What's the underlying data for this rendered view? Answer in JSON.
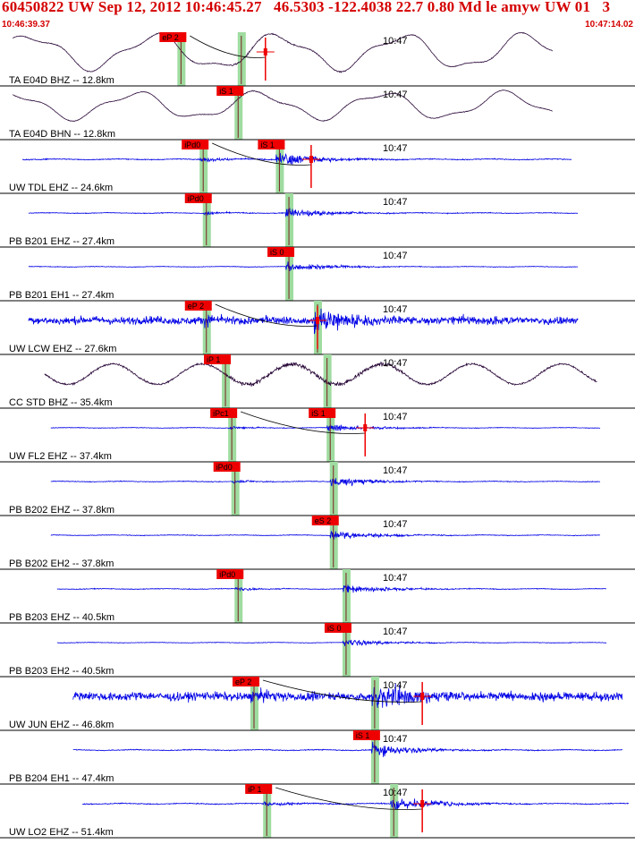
{
  "header": {
    "title": "60450822 UW Sep 12, 2012 10:46:45.27   46.5303 -122.4038 22.7 0.80 Md le amyw UW 01   3",
    "time_start": "10:46:39.37",
    "time_end": "10:47:14.02"
  },
  "colors": {
    "header": "#d40000",
    "trace_blue": "#0000e6",
    "trace_purple": "#2b0a3a",
    "pick_box": "#ee0000",
    "pick_window": "#9fdca0",
    "separator": "#000000"
  },
  "chart_data": {
    "type": "line",
    "time_axis": {
      "start": "10:46:39.37",
      "end": "10:47:14.02",
      "minute_label": "10:47"
    },
    "channels": [
      {
        "label": "TA E04D BHZ -- 12.8km",
        "color": "purple",
        "style": "long-period",
        "start": 0.02,
        "end": 0.87,
        "amp": 0.9,
        "phases": [
          {
            "label": "eP 2",
            "time": 0.285
          },
          {
            "label": "",
            "time": 0.38
          }
        ],
        "marker_time": 0.418,
        "curve": true
      },
      {
        "label": "TA E04D BHN -- 12.8km",
        "color": "purple",
        "style": "long-period",
        "start": 0.02,
        "end": 0.87,
        "amp": 0.7,
        "phases": [
          {
            "label": "iS 1",
            "time": 0.375
          }
        ],
        "marker_time": null,
        "curve": false
      },
      {
        "label": "UW TDL EHZ -- 24.6km",
        "color": "blue",
        "style": "short-period",
        "start": 0.035,
        "end": 0.9,
        "amp": 0.28,
        "phases": [
          {
            "label": "iPd0",
            "time": 0.32
          },
          {
            "label": "iS 1",
            "time": 0.44
          }
        ],
        "marker_time": 0.49,
        "curve": true
      },
      {
        "label": "PB B201 EHZ -- 27.4km",
        "color": "blue",
        "style": "short-period",
        "start": 0.045,
        "end": 0.91,
        "amp": 0.22,
        "phases": [
          {
            "label": "iPd0",
            "time": 0.325
          },
          {
            "label": "",
            "time": 0.455
          }
        ],
        "marker_time": null,
        "curve": false
      },
      {
        "label": "PB B201 EH1 -- 27.4km",
        "color": "blue",
        "style": "short-period",
        "start": 0.045,
        "end": 0.91,
        "amp": 0.18,
        "phases": [
          {
            "label": "iS 0",
            "time": 0.455
          }
        ],
        "marker_time": null,
        "curve": false
      },
      {
        "label": "UW LCW EHZ -- 27.6km",
        "color": "blue",
        "style": "noisy",
        "start": 0.045,
        "end": 0.91,
        "amp": 0.55,
        "phases": [
          {
            "label": "eP 2",
            "time": 0.325
          },
          {
            "label": "",
            "time": 0.5
          }
        ],
        "marker_time": 0.5,
        "curve": true
      },
      {
        "label": "CC STD BHZ -- 35.4km",
        "color": "purple",
        "style": "swell",
        "start": 0.07,
        "end": 0.94,
        "amp": 0.55,
        "phases": [
          {
            "label": "iP 1",
            "time": 0.355
          },
          {
            "label": "",
            "time": 0.515
          }
        ],
        "marker_time": null,
        "curve": false
      },
      {
        "label": "UW FL2 EHZ -- 37.4km",
        "color": "blue",
        "style": "short-period",
        "start": 0.08,
        "end": 0.945,
        "amp": 0.18,
        "phases": [
          {
            "label": "iPc1",
            "time": 0.365
          },
          {
            "label": "iS 1",
            "time": 0.52
          }
        ],
        "marker_time": 0.575,
        "curve": true
      },
      {
        "label": "PB B202 EHZ -- 37.8km",
        "color": "blue",
        "style": "short-period",
        "start": 0.08,
        "end": 0.945,
        "amp": 0.2,
        "phases": [
          {
            "label": "iPd0",
            "time": 0.37
          },
          {
            "label": "",
            "time": 0.525
          }
        ],
        "marker_time": null,
        "curve": false
      },
      {
        "label": "PB B202 EH2 -- 37.8km",
        "color": "blue",
        "style": "short-period",
        "start": 0.08,
        "end": 0.945,
        "amp": 0.2,
        "phases": [
          {
            "label": "eS 2",
            "time": 0.525
          }
        ],
        "marker_time": null,
        "curve": false
      },
      {
        "label": "PB B203 EHZ -- 40.5km",
        "color": "blue",
        "style": "short-period",
        "start": 0.09,
        "end": 0.955,
        "amp": 0.22,
        "phases": [
          {
            "label": "iPd0",
            "time": 0.375
          },
          {
            "label": "",
            "time": 0.545
          }
        ],
        "marker_time": null,
        "curve": false
      },
      {
        "label": "PB B203 EH2 -- 40.5km",
        "color": "blue",
        "style": "short-period",
        "start": 0.09,
        "end": 0.955,
        "amp": 0.16,
        "phases": [
          {
            "label": "iS 0",
            "time": 0.545
          }
        ],
        "marker_time": null,
        "curve": false
      },
      {
        "label": "UW JUN EHZ -- 46.8km",
        "color": "blue",
        "style": "noisy",
        "start": 0.115,
        "end": 0.98,
        "amp": 0.6,
        "phases": [
          {
            "label": "eP 2",
            "time": 0.4
          },
          {
            "label": "",
            "time": 0.59
          }
        ],
        "marker_time": 0.665,
        "curve": true
      },
      {
        "label": "PB B204 EH1 -- 47.4km",
        "color": "blue",
        "style": "short-period",
        "start": 0.115,
        "end": 0.98,
        "amp": 0.28,
        "phases": [
          {
            "label": "iS 1",
            "time": 0.59
          }
        ],
        "marker_time": null,
        "curve": false
      },
      {
        "label": "UW LO2 EHZ -- 51.4km",
        "color": "blue",
        "style": "short-period",
        "start": 0.13,
        "end": 0.99,
        "amp": 0.3,
        "phases": [
          {
            "label": "iP 1",
            "time": 0.42
          },
          {
            "label": "",
            "time": 0.62
          }
        ],
        "marker_time": 0.665,
        "curve": true
      }
    ]
  }
}
